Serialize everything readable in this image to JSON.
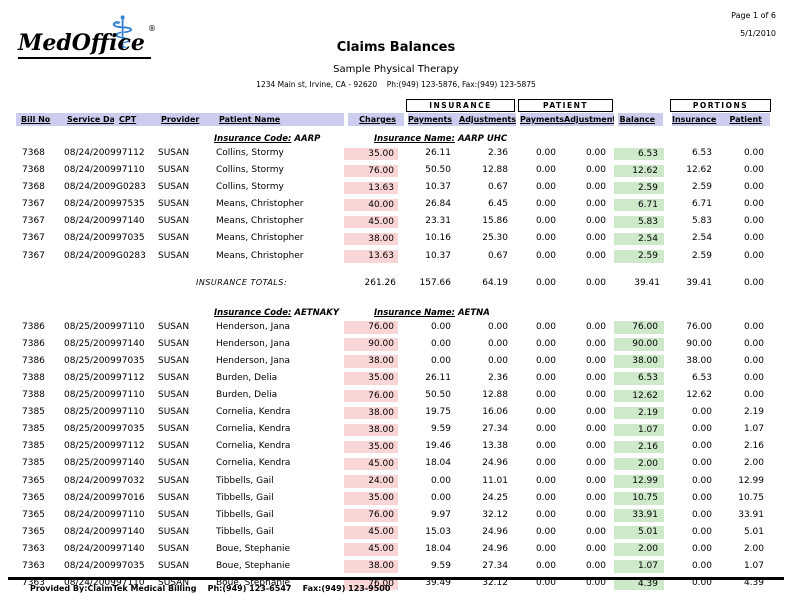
{
  "page": {
    "page_label": "Page 1 of 6",
    "date": "5/1/2010",
    "title": "Claims Balances",
    "practice_name": "Sample Physical Therapy",
    "practice_address": "1234 Main st, Irvine, CA - 92620    Ph:(949) 123-5876, Fax:(949) 123-5875",
    "footer": "Provided By:ClaimTek Medical Billing    Ph:(949) 123-6547    Fax:(949) 123-9500"
  },
  "logo": {
    "text": "MedOffice",
    "registered": "®",
    "caduceus": "⚕"
  },
  "colors": {
    "header_bg": "#ccccee",
    "charges_bg": "#fad5d5",
    "balance_bg": "#cde9c9",
    "logo_blue": "#2f7ed0"
  },
  "table": {
    "group_headers": [
      "INSURANCE",
      "PATIENT",
      "PORTIONS"
    ],
    "columns": [
      "Bill No",
      "Service Date",
      "CPT",
      "Provider",
      "Patient Name",
      "Charges",
      "Payments",
      "Adjustments",
      "Payments",
      "Adjustments",
      "Balance",
      "Insurance",
      "Patient"
    ],
    "sections": [
      {
        "code_label": "Insurance Code:",
        "code": "AARP",
        "name_label": "Insurance Name:",
        "name": "AARP UHC",
        "rows": [
          [
            "7368",
            "08/24/2009",
            "97112",
            "SUSAN",
            "Collins, Stormy",
            "35.00",
            "26.11",
            "2.36",
            "0.00",
            "0.00",
            "6.53",
            "6.53",
            "0.00"
          ],
          [
            "7368",
            "08/24/2009",
            "97110",
            "SUSAN",
            "Collins, Stormy",
            "76.00",
            "50.50",
            "12.88",
            "0.00",
            "0.00",
            "12.62",
            "12.62",
            "0.00"
          ],
          [
            "7368",
            "08/24/2009",
            "G0283",
            "SUSAN",
            "Collins, Stormy",
            "13.63",
            "10.37",
            "0.67",
            "0.00",
            "0.00",
            "2.59",
            "2.59",
            "0.00"
          ],
          [
            "7367",
            "08/24/2009",
            "97535",
            "SUSAN",
            "Means, Christopher",
            "40.00",
            "26.84",
            "6.45",
            "0.00",
            "0.00",
            "6.71",
            "6.71",
            "0.00"
          ],
          [
            "7367",
            "08/24/2009",
            "97140",
            "SUSAN",
            "Means, Christopher",
            "45.00",
            "23.31",
            "15.86",
            "0.00",
            "0.00",
            "5.83",
            "5.83",
            "0.00"
          ],
          [
            "7367",
            "08/24/2009",
            "97035",
            "SUSAN",
            "Means, Christopher",
            "38.00",
            "10.16",
            "25.30",
            "0.00",
            "0.00",
            "2.54",
            "2.54",
            "0.00"
          ],
          [
            "7367",
            "08/24/2009",
            "G0283",
            "SUSAN",
            "Means, Christopher",
            "13.63",
            "10.37",
            "0.67",
            "0.00",
            "0.00",
            "2.59",
            "2.59",
            "0.00"
          ]
        ],
        "totals_label": "INSURANCE TOTALS:",
        "totals": [
          "261.26",
          "157.66",
          "64.19",
          "0.00",
          "0.00",
          "39.41",
          "39.41",
          "0.00"
        ]
      },
      {
        "code_label": "Insurance Code:",
        "code": "AETNAKY",
        "name_label": "Insurance Name:",
        "name": "AETNA",
        "rows": [
          [
            "7386",
            "08/25/2009",
            "97110",
            "SUSAN",
            "Henderson, Jana",
            "76.00",
            "0.00",
            "0.00",
            "0.00",
            "0.00",
            "76.00",
            "76.00",
            "0.00"
          ],
          [
            "7386",
            "08/25/2009",
            "97140",
            "SUSAN",
            "Henderson, Jana",
            "90.00",
            "0.00",
            "0.00",
            "0.00",
            "0.00",
            "90.00",
            "90.00",
            "0.00"
          ],
          [
            "7386",
            "08/25/2009",
            "97035",
            "SUSAN",
            "Henderson, Jana",
            "38.00",
            "0.00",
            "0.00",
            "0.00",
            "0.00",
            "38.00",
            "38.00",
            "0.00"
          ],
          [
            "7388",
            "08/25/2009",
            "97112",
            "SUSAN",
            "Burden, Delia",
            "35.00",
            "26.11",
            "2.36",
            "0.00",
            "0.00",
            "6.53",
            "6.53",
            "0.00"
          ],
          [
            "7388",
            "08/25/2009",
            "97110",
            "SUSAN",
            "Burden, Delia",
            "76.00",
            "50.50",
            "12.88",
            "0.00",
            "0.00",
            "12.62",
            "12.62",
            "0.00"
          ],
          [
            "7385",
            "08/25/2009",
            "97110",
            "SUSAN",
            "Cornelia, Kendra",
            "38.00",
            "19.75",
            "16.06",
            "0.00",
            "0.00",
            "2.19",
            "0.00",
            "2.19"
          ],
          [
            "7385",
            "08/25/2009",
            "97035",
            "SUSAN",
            "Cornelia, Kendra",
            "38.00",
            "9.59",
            "27.34",
            "0.00",
            "0.00",
            "1.07",
            "0.00",
            "1.07"
          ],
          [
            "7385",
            "08/25/2009",
            "97112",
            "SUSAN",
            "Cornelia, Kendra",
            "35.00",
            "19.46",
            "13.38",
            "0.00",
            "0.00",
            "2.16",
            "0.00",
            "2.16"
          ],
          [
            "7385",
            "08/25/2009",
            "97140",
            "SUSAN",
            "Cornelia, Kendra",
            "45.00",
            "18.04",
            "24.96",
            "0.00",
            "0.00",
            "2.00",
            "0.00",
            "2.00"
          ],
          [
            "7365",
            "08/24/2009",
            "97032",
            "SUSAN",
            "Tibbells, Gail",
            "24.00",
            "0.00",
            "11.01",
            "0.00",
            "0.00",
            "12.99",
            "0.00",
            "12.99"
          ],
          [
            "7365",
            "08/24/2009",
            "97016",
            "SUSAN",
            "Tibbells, Gail",
            "35.00",
            "0.00",
            "24.25",
            "0.00",
            "0.00",
            "10.75",
            "0.00",
            "10.75"
          ],
          [
            "7365",
            "08/24/2009",
            "97110",
            "SUSAN",
            "Tibbells, Gail",
            "76.00",
            "9.97",
            "32.12",
            "0.00",
            "0.00",
            "33.91",
            "0.00",
            "33.91"
          ],
          [
            "7365",
            "08/24/2009",
            "97140",
            "SUSAN",
            "Tibbells, Gail",
            "45.00",
            "15.03",
            "24.96",
            "0.00",
            "0.00",
            "5.01",
            "0.00",
            "5.01"
          ],
          [
            "7363",
            "08/24/2009",
            "97140",
            "SUSAN",
            "Boue, Stephanie",
            "45.00",
            "18.04",
            "24.96",
            "0.00",
            "0.00",
            "2.00",
            "0.00",
            "2.00"
          ],
          [
            "7363",
            "08/24/2009",
            "97035",
            "SUSAN",
            "Boue, Stephanie",
            "38.00",
            "9.59",
            "27.34",
            "0.00",
            "0.00",
            "1.07",
            "0.00",
            "1.07"
          ],
          [
            "7363",
            "08/24/2009",
            "97110",
            "SUSAN",
            "Boue, Stephanie",
            "76.00",
            "39.49",
            "32.12",
            "0.00",
            "0.00",
            "4.39",
            "0.00",
            "4.39"
          ]
        ],
        "totals_label": null,
        "totals": null
      }
    ]
  }
}
